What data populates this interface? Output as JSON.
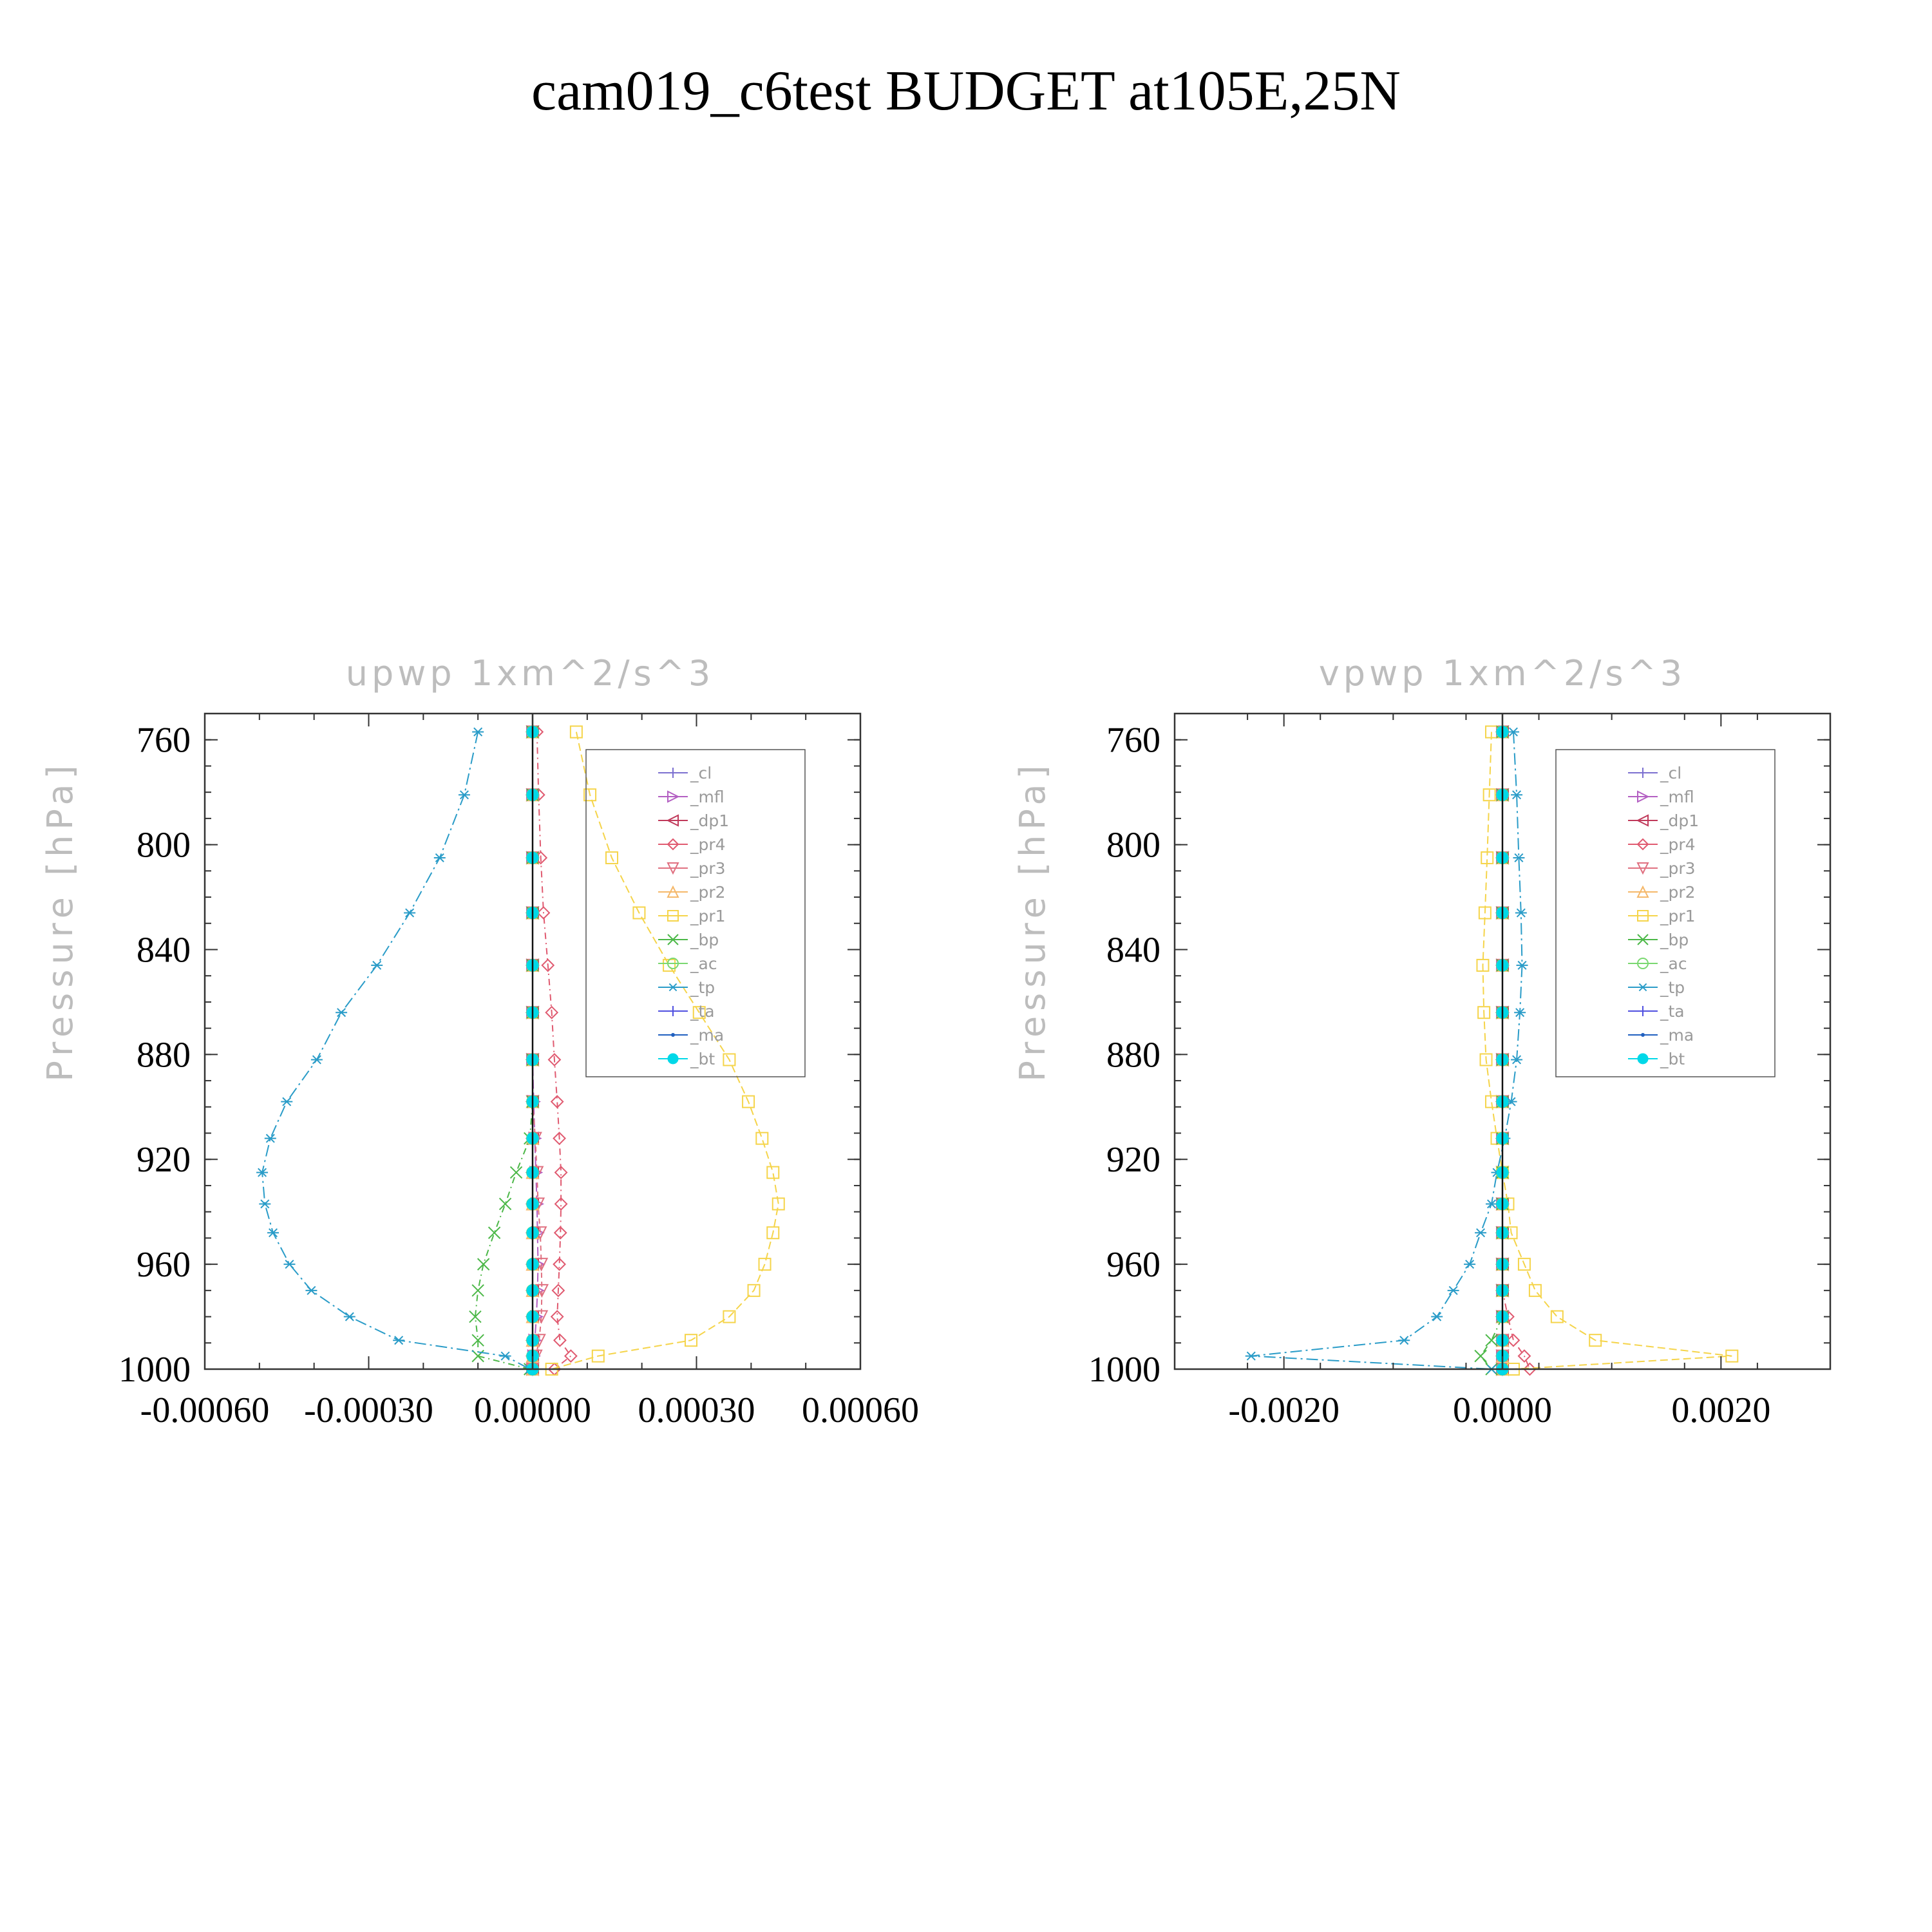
{
  "figure_title": "cam019_c6test  BUDGET at105E,25N",
  "chart_data": [
    {
      "type": "line",
      "title": "upwp   1xm^2/s^3",
      "ylabel": "Pressure  [hPa]",
      "xlim": [
        -0.0006,
        0.0006
      ],
      "ylim": [
        1000,
        750
      ],
      "y_inverted": true,
      "xticks": [
        -0.0006,
        -0.0003,
        0.0,
        0.0003,
        0.0006
      ],
      "xtick_labels": [
        "-0.00060",
        "-0.00030",
        "0.00000",
        "0.00030",
        "0.00060"
      ],
      "yticks": [
        760,
        800,
        840,
        880,
        920,
        960,
        1000
      ],
      "ytick_labels": [
        "760",
        "800",
        "840",
        "880",
        "920",
        "960",
        "1000"
      ],
      "legend_position": "upper-right",
      "levels": [
        757,
        781,
        805,
        826,
        846,
        864,
        882,
        898,
        912,
        925,
        937,
        948,
        960,
        970,
        980,
        989,
        995,
        1000
      ],
      "series": [
        {
          "name": "_cl",
          "color": "#7b6fd0",
          "marker": "plus",
          "values": [
            0,
            0,
            0,
            0,
            0,
            0,
            0,
            0,
            0,
            0,
            0,
            0,
            0,
            0,
            0,
            0,
            0,
            0
          ]
        },
        {
          "name": "_mfl",
          "color": "#b35fc2",
          "marker": "triangle-right",
          "values": [
            0,
            0,
            0,
            0,
            0,
            0,
            0,
            2e-06,
            4e-06,
            6e-06,
            8e-06,
            9e-06,
            1e-05,
            9e-06,
            7e-06,
            4e-06,
            2e-06,
            0
          ]
        },
        {
          "name": "_dp1",
          "color": "#c0395a",
          "marker": "triangle-left",
          "values": [
            0,
            0,
            0,
            0,
            0,
            0,
            0,
            0,
            0,
            0,
            0,
            0,
            0,
            0,
            0,
            0,
            0,
            0
          ]
        },
        {
          "name": "_pr4",
          "color": "#e05a70",
          "marker": "diamond",
          "values": [
            8e-06,
            1.1e-05,
            1.5e-05,
            2e-05,
            2.8e-05,
            3.5e-05,
            4e-05,
            4.5e-05,
            4.9e-05,
            5.2e-05,
            5.2e-05,
            5.1e-05,
            4.9e-05,
            4.7e-05,
            4.5e-05,
            5e-05,
            7e-05,
            4e-05
          ]
        },
        {
          "name": "_pr3",
          "color": "#e07080",
          "marker": "triangle-down",
          "values": [
            0,
            0,
            0,
            0,
            0,
            0,
            0,
            0,
            5e-06,
            8e-06,
            1e-05,
            1.4e-05,
            1.6e-05,
            1.7e-05,
            1.6e-05,
            1.2e-05,
            6e-06,
            0
          ]
        },
        {
          "name": "_pr2",
          "color": "#f5b86a",
          "marker": "triangle-up",
          "values": [
            0,
            0,
            0,
            0,
            0,
            0,
            0,
            0,
            0,
            0,
            0,
            0,
            0,
            0,
            0,
            0,
            0,
            0
          ]
        },
        {
          "name": "_pr1",
          "color": "#f5d44a",
          "marker": "square",
          "values": [
            8e-05,
            0.000105,
            0.000145,
            0.000195,
            0.00025,
            0.000305,
            0.00036,
            0.000395,
            0.00042,
            0.00044,
            0.00045,
            0.00044,
            0.000425,
            0.000405,
            0.00036,
            0.00029,
            0.00012,
            3.5e-05
          ]
        },
        {
          "name": "_bp",
          "color": "#4cb848",
          "marker": "x",
          "values": [
            0,
            0,
            0,
            0,
            0,
            0,
            0,
            0,
            -5e-06,
            -3e-05,
            -5e-05,
            -7e-05,
            -9e-05,
            -0.0001,
            -0.000105,
            -0.0001,
            -0.0001,
            -5e-06
          ]
        },
        {
          "name": "_ac",
          "color": "#7ad870",
          "marker": "circle",
          "values": [
            0,
            0,
            0,
            0,
            0,
            0,
            0,
            0,
            0,
            0,
            0,
            0,
            0,
            0,
            0,
            0,
            0,
            0
          ]
        },
        {
          "name": "_tp",
          "color": "#2a9cc8",
          "marker": "asterisk",
          "values": [
            -0.0001,
            -0.000125,
            -0.00017,
            -0.000225,
            -0.000285,
            -0.00035,
            -0.000395,
            -0.00045,
            -0.00048,
            -0.000495,
            -0.00049,
            -0.000475,
            -0.000445,
            -0.000405,
            -0.000335,
            -0.000245,
            -5e-05,
            -5e-06
          ]
        },
        {
          "name": "_ta",
          "color": "#5050e0",
          "marker": "plus",
          "values": [
            0,
            0,
            0,
            0,
            0,
            0,
            0,
            0,
            0,
            0,
            0,
            0,
            0,
            0,
            0,
            0,
            0,
            0
          ]
        },
        {
          "name": "_ma",
          "color": "#2060c0",
          "marker": "dot",
          "values": [
            0,
            0,
            0,
            0,
            0,
            0,
            0,
            0,
            0,
            0,
            0,
            0,
            0,
            0,
            0,
            0,
            0,
            0
          ]
        },
        {
          "name": "_bt",
          "color": "#00d8e8",
          "marker": "filled-circle",
          "values": [
            0,
            0,
            0,
            0,
            0,
            0,
            0,
            0,
            0,
            0,
            0,
            0,
            0,
            0,
            0,
            0,
            0,
            0
          ]
        }
      ]
    },
    {
      "type": "line",
      "title": "vpwp   1xm^2/s^3",
      "ylabel": "Pressure  [hPa]",
      "xlim": [
        -0.003,
        0.003
      ],
      "ylim": [
        1000,
        750
      ],
      "y_inverted": true,
      "xticks": [
        -0.002,
        0.0,
        0.002
      ],
      "xtick_labels": [
        "-0.0020",
        "0.0000",
        "0.0020"
      ],
      "yticks": [
        760,
        800,
        840,
        880,
        920,
        960,
        1000
      ],
      "ytick_labels": [
        "760",
        "800",
        "840",
        "880",
        "920",
        "960",
        "1000"
      ],
      "legend_position": "upper-right",
      "levels": [
        757,
        781,
        805,
        826,
        846,
        864,
        882,
        898,
        912,
        925,
        937,
        948,
        960,
        970,
        980,
        989,
        995,
        1000
      ],
      "series": [
        {
          "name": "_cl",
          "color": "#7b6fd0",
          "marker": "plus",
          "values": [
            0,
            0,
            0,
            0,
            0,
            0,
            0,
            0,
            0,
            0,
            0,
            0,
            0,
            0,
            0,
            0,
            0,
            0
          ]
        },
        {
          "name": "_mfl",
          "color": "#b35fc2",
          "marker": "triangle-right",
          "values": [
            0,
            0,
            0,
            0,
            0,
            0,
            0,
            0,
            0,
            0,
            0,
            0,
            0,
            0,
            0,
            0,
            0,
            0
          ]
        },
        {
          "name": "_dp1",
          "color": "#c0395a",
          "marker": "triangle-left",
          "values": [
            0,
            0,
            0,
            0,
            0,
            0,
            0,
            0,
            0,
            0,
            0,
            0,
            0,
            0,
            0,
            0,
            0,
            0
          ]
        },
        {
          "name": "_pr4",
          "color": "#e05a70",
          "marker": "diamond",
          "values": [
            0,
            0,
            0,
            0,
            0,
            0,
            0,
            0,
            0,
            0,
            0,
            0,
            0,
            0,
            5e-05,
            0.0001,
            0.0002,
            0.00025
          ]
        },
        {
          "name": "_pr3",
          "color": "#e07080",
          "marker": "triangle-down",
          "values": [
            0,
            0,
            0,
            0,
            0,
            0,
            0,
            0,
            0,
            0,
            0,
            0,
            0,
            0,
            0,
            0,
            0,
            0
          ]
        },
        {
          "name": "_pr2",
          "color": "#f5b86a",
          "marker": "triangle-up",
          "values": [
            0,
            0,
            0,
            0,
            0,
            0,
            0,
            0,
            0,
            0,
            0,
            0,
            0,
            0,
            0,
            0,
            0,
            0
          ]
        },
        {
          "name": "_pr1",
          "color": "#f5d44a",
          "marker": "square",
          "values": [
            -0.0001,
            -0.00012,
            -0.00014,
            -0.00016,
            -0.00018,
            -0.00017,
            -0.00015,
            -0.0001,
            -5e-05,
            0,
            5e-05,
            8e-05,
            0.0002,
            0.0003,
            0.0005,
            0.00085,
            0.0021,
            0.0001
          ]
        },
        {
          "name": "_bp",
          "color": "#4cb848",
          "marker": "x",
          "values": [
            0,
            0,
            0,
            0,
            0,
            0,
            0,
            0,
            0,
            0,
            0,
            0,
            0,
            0,
            0,
            -0.0001,
            -0.0002,
            -0.0001
          ]
        },
        {
          "name": "_ac",
          "color": "#7ad870",
          "marker": "circle",
          "values": [
            0,
            0,
            0,
            0,
            0,
            0,
            0,
            0,
            0,
            0,
            0,
            0,
            0,
            0,
            0,
            0,
            0,
            0
          ]
        },
        {
          "name": "_tp",
          "color": "#2a9cc8",
          "marker": "asterisk",
          "values": [
            0.0001,
            0.00013,
            0.00015,
            0.00017,
            0.00018,
            0.00016,
            0.00013,
            8e-05,
            2e-05,
            -5e-05,
            -0.0001,
            -0.0002,
            -0.0003,
            -0.00045,
            -0.0006,
            -0.0009,
            -0.0023,
            -0.0001
          ]
        },
        {
          "name": "_ta",
          "color": "#5050e0",
          "marker": "plus",
          "values": [
            0,
            0,
            0,
            0,
            0,
            0,
            0,
            0,
            0,
            0,
            0,
            0,
            0,
            0,
            0,
            0,
            0,
            0
          ]
        },
        {
          "name": "_ma",
          "color": "#2060c0",
          "marker": "dot",
          "values": [
            0,
            0,
            0,
            0,
            0,
            0,
            0,
            0,
            0,
            0,
            0,
            0,
            0,
            0,
            0,
            0,
            0,
            0
          ]
        },
        {
          "name": "_bt",
          "color": "#00d8e8",
          "marker": "filled-circle",
          "values": [
            0,
            0,
            0,
            0,
            0,
            0,
            0,
            0,
            0,
            0,
            0,
            0,
            0,
            0,
            0,
            0,
            0,
            0
          ]
        }
      ]
    }
  ]
}
